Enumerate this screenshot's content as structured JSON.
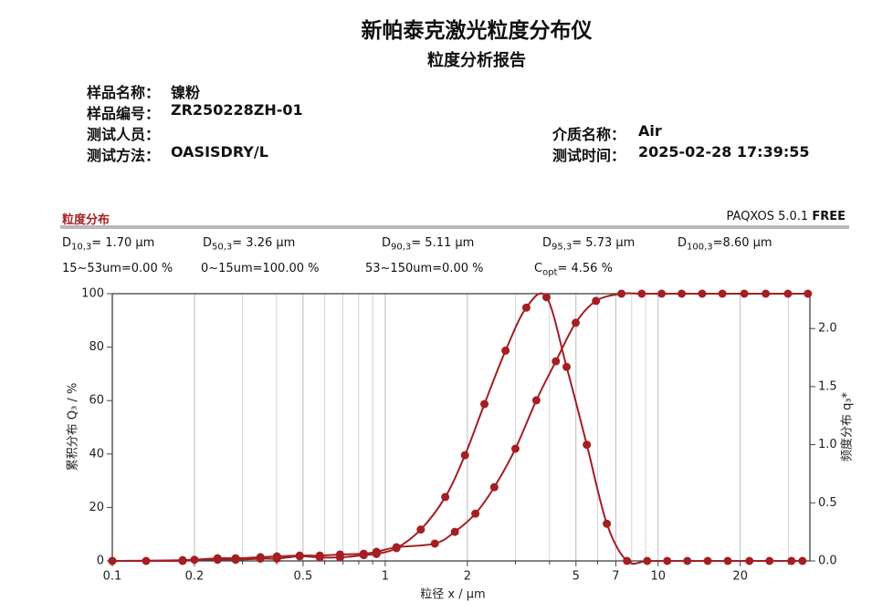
{
  "header": {
    "title": "新帕泰克激光粒度分布仪",
    "subtitle": "粒度分析报告"
  },
  "info": {
    "left": [
      {
        "label": "样品名称：",
        "value": "镍粉"
      },
      {
        "label": "样品编号：",
        "value": "ZR250228ZH-01"
      },
      {
        "label": "测试人员："
      },
      {
        "label": "测试方法：",
        "value": "OASISDRY/L"
      }
    ],
    "right": [
      {
        "label": "介质名称：",
        "value": "Air"
      },
      {
        "label": "测试时间：",
        "value": "2025-02-28 17:39:55"
      }
    ]
  },
  "section": {
    "title": "粒度分布",
    "software": "PAQXOS 5.0.1",
    "license": "FREE"
  },
  "stats": {
    "rows": [
      [
        {
          "symbol": "D",
          "subscript": "10,3",
          "text": "= 1.70 µm"
        },
        {
          "symbol": "D",
          "subscript": "50,3",
          "text": "= 3.26 µm"
        },
        {
          "symbol": "D",
          "subscript": "90,3",
          "text": "= 5.11 µm"
        },
        {
          "symbol": "D",
          "subscript": "95,3",
          "text": "= 5.73 µm"
        },
        {
          "symbol": "D",
          "subscript": "100,3",
          "text": "=8.60 µm"
        }
      ],
      [
        {
          "text": "15~53um=0.00 %"
        },
        {
          "text": "0~15um=100.00 %"
        },
        {
          "text": "53~150um=0.00 %"
        },
        {
          "symbol": "C",
          "subscript": "opt",
          "text": "= 4.56 %"
        }
      ]
    ]
  },
  "chart_data": {
    "type": "line",
    "x_label": "粒径 x / µm",
    "y_label": "累积分布 Q₃ / %",
    "y2_label": "频度分布 q₃*",
    "xlog": true,
    "xlim": [
      0.1,
      36
    ],
    "xticks": [
      0.1,
      0.2,
      0.5,
      1,
      2,
      5,
      7,
      10,
      20
    ],
    "xgrid": [
      0.3,
      0.4,
      0.6,
      0.7,
      0.8,
      0.9,
      3,
      4,
      6,
      8,
      9,
      30
    ],
    "ylim": [
      0,
      100
    ],
    "yticks": [
      0,
      20,
      40,
      60,
      80,
      100
    ],
    "y2lim": [
      0,
      2.3
    ],
    "y2ticks": [
      {
        "value": 0,
        "label": "0.0"
      },
      0.5,
      {
        "value": 1,
        "label": "1.0"
      },
      1.5,
      {
        "value": 2,
        "label": "2.0"
      }
    ],
    "marker": "circle",
    "series": [
      {
        "color": "#a31f24",
        "x": [
          0.1,
          0.181,
          0.243,
          0.283,
          0.349,
          0.401,
          0.486,
          0.576,
          0.683,
          0.834,
          0.929,
          1.1,
          1.52,
          1.8,
          2.14,
          2.51,
          3.0,
          3.58,
          4.22,
          4.99,
          5.92,
          7.34,
          8.71,
          10.3,
          12.2,
          14.5,
          17.2,
          20.7,
          24.8,
          29.9,
          35.4
        ],
        "values": [
          0,
          0.3,
          1,
          1,
          1.4,
          1.7,
          2,
          2,
          2.4,
          2.7,
          3.4,
          5.1,
          6.5,
          10.9,
          17.7,
          27.6,
          42.0,
          60.1,
          74.7,
          89.1,
          97.3,
          100,
          100,
          100,
          100,
          100,
          100,
          100,
          100,
          100,
          100
        ]
      },
      {
        "color": "#a31f24",
        "axis": "y2",
        "x": [
          0.1,
          0.133,
          0.181,
          0.2,
          0.243,
          0.283,
          0.349,
          0.401,
          0.486,
          0.576,
          0.683,
          0.834,
          0.929,
          1.1,
          1.35,
          1.66,
          1.96,
          2.31,
          2.76,
          3.29,
          3.9,
          4.62,
          5.48,
          6.49,
          7.69,
          9.12,
          10.8,
          12.8,
          15.2,
          18.0,
          21.6,
          25.6,
          30.8,
          33.8
        ],
        "values": [
          0,
          0,
          0,
          0.01,
          0.01,
          0.01,
          0.02,
          0.02,
          0.04,
          0.03,
          0.03,
          0.05,
          0.06,
          0.11,
          0.27,
          0.55,
          0.91,
          1.35,
          1.81,
          2.18,
          2.27,
          1.67,
          1.0,
          0.32,
          0,
          0,
          0,
          0,
          0,
          0,
          0,
          0,
          0,
          0
        ]
      }
    ]
  }
}
